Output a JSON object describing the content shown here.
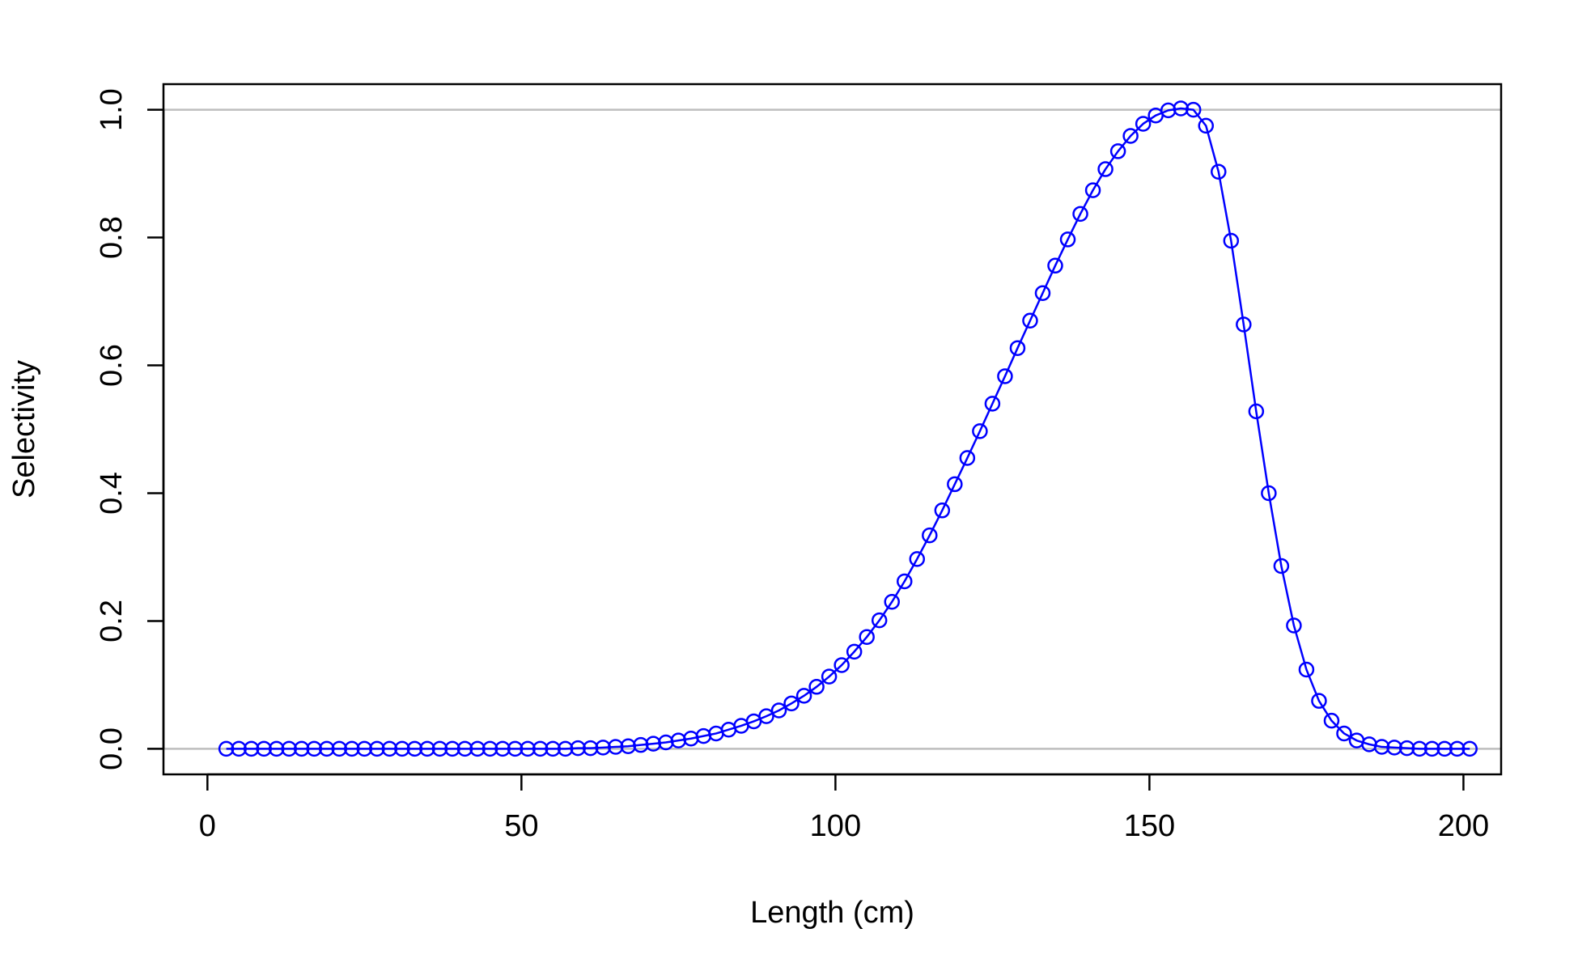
{
  "chart_data": {
    "type": "line",
    "title": "",
    "xlabel": "Length (cm)",
    "ylabel": "Selectivity",
    "xlim": [
      -7,
      206
    ],
    "ylim": [
      -0.04,
      1.04
    ],
    "x_ticks": [
      0,
      50,
      100,
      150,
      200
    ],
    "x_tick_labels": [
      "0",
      "50",
      "100",
      "150",
      "200"
    ],
    "y_ticks": [
      0.0,
      0.2,
      0.4,
      0.6,
      0.8,
      1.0
    ],
    "y_tick_labels": [
      "0.0",
      "0.2",
      "0.4",
      "0.6",
      "0.8",
      "1.0"
    ],
    "reference_lines": [
      0,
      1
    ],
    "grid": false,
    "colors": {
      "series": "#0000ff",
      "reference": "#bebebe",
      "axis": "#000000"
    },
    "series": [
      {
        "style": "line+open-circles",
        "x": [
          3,
          5,
          7,
          9,
          11,
          13,
          15,
          17,
          19,
          21,
          23,
          25,
          27,
          29,
          31,
          33,
          35,
          37,
          39,
          41,
          43,
          45,
          47,
          49,
          51,
          53,
          55,
          57,
          59,
          61,
          63,
          65,
          67,
          69,
          71,
          73,
          75,
          77,
          79,
          81,
          83,
          85,
          87,
          89,
          91,
          93,
          95,
          97,
          99,
          101,
          103,
          105,
          107,
          109,
          111,
          113,
          115,
          117,
          119,
          121,
          123,
          125,
          127,
          129,
          131,
          133,
          135,
          137,
          139,
          141,
          143,
          145,
          147,
          149,
          151,
          153,
          155,
          157,
          159,
          161,
          163,
          165,
          167,
          169,
          171,
          173,
          175,
          177,
          179,
          181,
          183,
          185,
          187,
          189,
          191,
          193,
          195,
          197,
          199,
          201
        ],
        "y": [
          0.0,
          0.0,
          0.0,
          0.0,
          0.0,
          0.0,
          0.0,
          0.0,
          0.0,
          0.0,
          0.0,
          0.0,
          0.0,
          0.0,
          0.0,
          0.0,
          0.0,
          0.0,
          0.0,
          0.0,
          0.0,
          0.0,
          0.0,
          0.0,
          0.0,
          0.0,
          0.0,
          0.0,
          0.001,
          0.001,
          0.002,
          0.003,
          0.004,
          0.006,
          0.008,
          0.01,
          0.013,
          0.016,
          0.02,
          0.024,
          0.03,
          0.036,
          0.043,
          0.051,
          0.06,
          0.071,
          0.083,
          0.097,
          0.113,
          0.131,
          0.152,
          0.175,
          0.201,
          0.23,
          0.262,
          0.297,
          0.334,
          0.373,
          0.414,
          0.455,
          0.497,
          0.54,
          0.583,
          0.627,
          0.67,
          0.713,
          0.756,
          0.797,
          0.837,
          0.874,
          0.907,
          0.935,
          0.959,
          0.978,
          0.991,
          0.999,
          1.002,
          1.0,
          0.975,
          0.903,
          0.795,
          0.664,
          0.528,
          0.4,
          0.286,
          0.193,
          0.124,
          0.075,
          0.044,
          0.024,
          0.013,
          0.007,
          0.003,
          0.002,
          0.001,
          0.0,
          0.0,
          0.0,
          0.0,
          0.0
        ]
      }
    ]
  }
}
